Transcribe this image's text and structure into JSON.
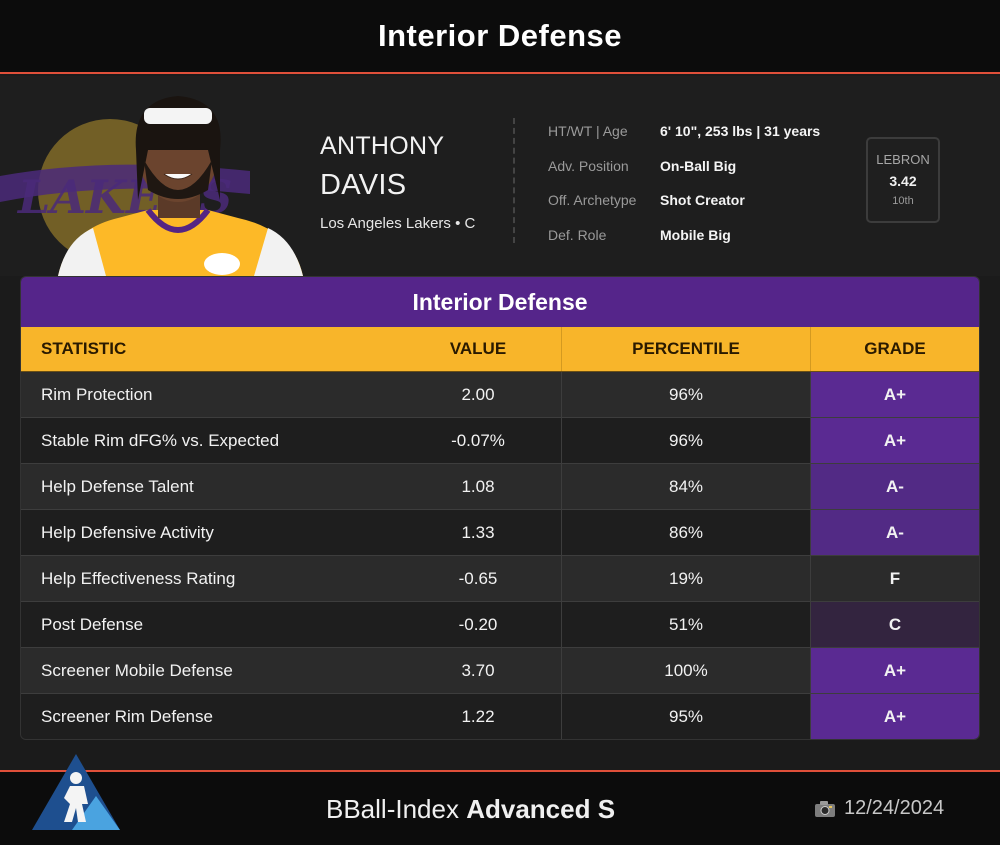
{
  "header": {
    "title": "Interior Defense"
  },
  "player": {
    "first_name": "ANTHONY",
    "last_name": "DAVIS",
    "team_line": "Los Angeles Lakers • C",
    "info": [
      {
        "label": "HT/WT | Age",
        "value": "6' 10\", 253 lbs | 31 years"
      },
      {
        "label": "Adv. Position",
        "value": "On-Ball Big"
      },
      {
        "label": "Off. Archetype",
        "value": "Shot Creator"
      },
      {
        "label": "Def. Role",
        "value": "Mobile Big"
      }
    ],
    "lebron": {
      "label": "LEBRON",
      "value": "3.42",
      "rank": "10th"
    }
  },
  "table": {
    "title": "Interior Defense",
    "columns": [
      "STATISTIC",
      "VALUE",
      "PERCENTILE",
      "GRADE"
    ],
    "rows": [
      {
        "statistic": "Rim Protection",
        "value": "2.00",
        "percentile": "96%",
        "grade": "A+",
        "grade_color": "#5a2a92"
      },
      {
        "statistic": "Stable Rim dFG% vs. Expected",
        "value": "-0.07%",
        "percentile": "96%",
        "grade": "A+",
        "grade_color": "#5a2a92"
      },
      {
        "statistic": "Help Defense Talent",
        "value": "1.08",
        "percentile": "84%",
        "grade": "A-",
        "grade_color": "#522a85"
      },
      {
        "statistic": "Help Defensive Activity",
        "value": "1.33",
        "percentile": "86%",
        "grade": "A-",
        "grade_color": "#522a85"
      },
      {
        "statistic": "Help Effectiveness Rating",
        "value": "-0.65",
        "percentile": "19%",
        "grade": "F",
        "grade_color": "#2b2b2b"
      },
      {
        "statistic": "Post Defense",
        "value": "-0.20",
        "percentile": "51%",
        "grade": "C",
        "grade_color": "#33243f"
      },
      {
        "statistic": "Screener Mobile Defense",
        "value": "3.70",
        "percentile": "100%",
        "grade": "A+",
        "grade_color": "#5a2a92"
      },
      {
        "statistic": "Screener Rim Defense",
        "value": "1.22",
        "percentile": "95%",
        "grade": "A+",
        "grade_color": "#5a2a92"
      }
    ]
  },
  "footer": {
    "brand_prefix": "BBall-Index",
    "brand_bold": "Advanced S",
    "date": "12/24/2024",
    "date_icon": "camera-icon"
  },
  "colors": {
    "accent_red": "#e0503a",
    "header_purple": "#55258a",
    "header_gold": "#f8b52a"
  }
}
